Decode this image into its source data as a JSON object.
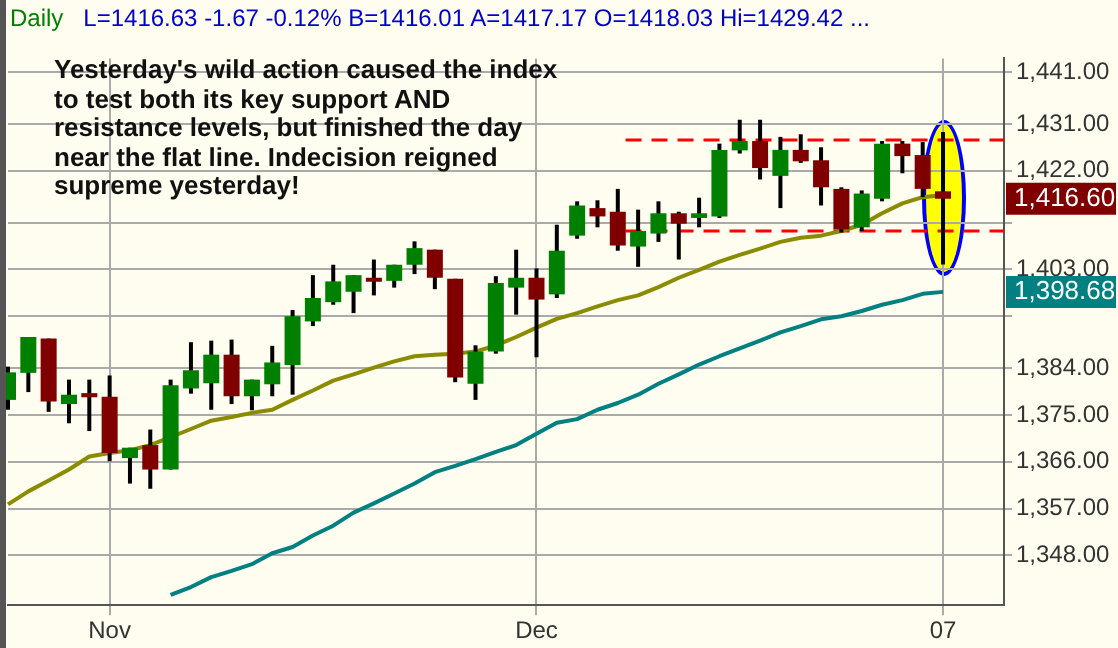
{
  "chart_data": {
    "type": "candlestick",
    "title": "Daily",
    "subtitle": "L=1416.63 -1.67 -0.12% B=1416.01 A=1417.17 O=1418.03 Hi=1429.42 ...",
    "categories": [
      null,
      null,
      null,
      null,
      null,
      "Nov",
      null,
      null,
      null,
      null,
      null,
      null,
      null,
      null,
      null,
      null,
      null,
      null,
      null,
      null,
      null,
      null,
      null,
      null,
      null,
      null,
      "Dec",
      null,
      null,
      null,
      null,
      null,
      null,
      null,
      null,
      null,
      null,
      null,
      null,
      null,
      null,
      null,
      null,
      null,
      null,
      null,
      "07",
      null,
      null,
      null
    ],
    "ohlc": [
      [
        1377.9,
        1384.3,
        1376.0,
        1383.2
      ],
      [
        1383.1,
        1390.0,
        1379.4,
        1390.0
      ],
      [
        1389.7,
        1389.7,
        1375.6,
        1377.6
      ],
      [
        1377.1,
        1381.8,
        1373.4,
        1378.9
      ],
      [
        1379.2,
        1381.8,
        1371.9,
        1378.4
      ],
      [
        1378.5,
        1382.6,
        1366.1,
        1367.7
      ],
      [
        1366.7,
        1368.7,
        1361.8,
        1368.7
      ],
      [
        1369.2,
        1372.2,
        1360.8,
        1364.5
      ],
      [
        1364.5,
        1381.8,
        1364.5,
        1380.7
      ],
      [
        1380.1,
        1389.0,
        1379.1,
        1383.6
      ],
      [
        1381.1,
        1389.3,
        1376.0,
        1386.6
      ],
      [
        1386.6,
        1389.5,
        1377.1,
        1378.6
      ],
      [
        1378.6,
        1381.8,
        1375.9,
        1381.8
      ],
      [
        1380.9,
        1388.3,
        1378.6,
        1385.1
      ],
      [
        1384.6,
        1395.2,
        1378.9,
        1394.0
      ],
      [
        1393.0,
        1401.9,
        1392.1,
        1397.5
      ],
      [
        1396.7,
        1403.9,
        1396.2,
        1400.7
      ],
      [
        1398.7,
        1401.9,
        1394.6,
        1401.9
      ],
      [
        1401.4,
        1404.9,
        1398.0,
        1400.8
      ],
      [
        1400.8,
        1403.9,
        1399.5,
        1403.9
      ],
      [
        1403.9,
        1408.4,
        1402.1,
        1407.1
      ],
      [
        1406.8,
        1406.8,
        1399.2,
        1401.4
      ],
      [
        1401.2,
        1401.2,
        1381.3,
        1382.2
      ],
      [
        1381.0,
        1388.4,
        1377.9,
        1387.2
      ],
      [
        1387.2,
        1401.7,
        1386.8,
        1400.4
      ],
      [
        1399.5,
        1406.8,
        1394.3,
        1401.4
      ],
      [
        1401.4,
        1403.2,
        1386.1,
        1397.2
      ],
      [
        1398.2,
        1411.6,
        1397.5,
        1406.6
      ],
      [
        1409.5,
        1416.1,
        1408.9,
        1415.3
      ],
      [
        1414.8,
        1416.3,
        1411.1,
        1413.2
      ],
      [
        1414.1,
        1418.5,
        1406.6,
        1407.6
      ],
      [
        1407.4,
        1414.5,
        1403.5,
        1410.4
      ],
      [
        1409.9,
        1416.1,
        1408.3,
        1413.8
      ],
      [
        1413.8,
        1414.1,
        1404.9,
        1411.8
      ],
      [
        1412.9,
        1416.8,
        1411.1,
        1413.8
      ],
      [
        1413.2,
        1427.2,
        1412.9,
        1426.0
      ],
      [
        1425.9,
        1431.8,
        1425.3,
        1427.7
      ],
      [
        1427.7,
        1431.8,
        1420.3,
        1422.5
      ],
      [
        1421.0,
        1428.5,
        1414.8,
        1426.0
      ],
      [
        1426.0,
        1429.0,
        1423.5,
        1423.8
      ],
      [
        1424.0,
        1426.5,
        1415.3,
        1418.8
      ],
      [
        1418.5,
        1418.8,
        1410.1,
        1410.7
      ],
      [
        1411.1,
        1418.2,
        1410.4,
        1417.6
      ],
      [
        1416.6,
        1427.7,
        1416.1,
        1427.2
      ],
      [
        1427.2,
        1427.7,
        1421.5,
        1424.8
      ],
      [
        1425.0,
        1427.5,
        1416.9,
        1418.5
      ],
      [
        1418.03,
        1429.42,
        1403.97,
        1416.6
      ],
      null,
      null,
      null
    ],
    "series": [
      {
        "type": "line",
        "color": "#8b8b00",
        "values": [
          1357.8,
          1360.3,
          1362.4,
          1364.5,
          1367.0,
          1367.7,
          1368.2,
          1369.2,
          null,
          1372.3,
          1373.9,
          1374.6,
          1375.4,
          1376.0,
          1377.9,
          1379.7,
          1381.6,
          1382.8,
          1384.1,
          1385.3,
          1386.3,
          1386.6,
          1386.8,
          1387.2,
          1388.4,
          1390.0,
          1391.8,
          1393.5,
          1394.6,
          1395.9,
          1397.1,
          1398.0,
          1399.6,
          1401.4,
          1402.9,
          1404.5,
          1405.8,
          1407.0,
          1408.3,
          1409.1,
          1409.5,
          1410.4,
          1411.6,
          1413.8,
          1415.7,
          1416.9,
          1417.3,
          null,
          null,
          null
        ]
      },
      {
        "type": "line",
        "color": "#008080",
        "values": [
          null,
          null,
          null,
          null,
          null,
          null,
          null,
          null,
          1340.4,
          1341.9,
          1343.8,
          1345.0,
          1346.3,
          1348.4,
          1349.6,
          1351.8,
          1353.7,
          1356.2,
          1358.0,
          1359.9,
          1361.8,
          1364.0,
          1365.2,
          1366.5,
          1367.9,
          1369.2,
          1371.4,
          1373.5,
          1374.2,
          1376.0,
          1377.3,
          1378.9,
          1381.0,
          1382.8,
          1384.7,
          1386.3,
          1387.8,
          1389.3,
          1390.9,
          1392.1,
          1393.4,
          1394.0,
          1395.0,
          1396.2,
          1397.1,
          1398.3,
          1398.68,
          null,
          null,
          null
        ]
      }
    ],
    "ylim": [
      1338.4,
      1443.6
    ],
    "yticks": [
      {
        "value": 1441,
        "label": "1,441.00"
      },
      {
        "value": 1431,
        "label": "1,431.00"
      },
      {
        "value": 1422,
        "label": "1,422.00"
      },
      {
        "value": 1412,
        "label": null
      },
      {
        "value": 1403,
        "label": "1,403.00"
      },
      {
        "value": 1394,
        "label": null
      },
      {
        "value": 1384,
        "label": "1,384.00"
      },
      {
        "value": 1375,
        "label": "1,375.00"
      },
      {
        "value": 1366,
        "label": "1,366.00"
      },
      {
        "value": 1357,
        "label": "1,357.00"
      },
      {
        "value": 1348,
        "label": "1,348.00"
      }
    ],
    "ref_lines": [
      {
        "axis": "y",
        "value": 1427.9,
        "color": "#ff0000",
        "line_style": "dashed"
      },
      {
        "axis": "y",
        "value": 1410.4,
        "color": "#ff0000",
        "line_style": "dashed"
      }
    ],
    "annotations": [
      "Yesterday's wild action caused the index to test both its key support AND resistance levels, but finished the day near the flat line.   Indecision reigned supreme yesterday!",
      {
        "text": "1,416.60",
        "x": "07",
        "y": 1416.6
      },
      {
        "text": "1,398.68",
        "x": "07",
        "y": 1398.68
      }
    ],
    "grid": true,
    "legend": false,
    "marker": "none",
    "line_style": "solid"
  }
}
